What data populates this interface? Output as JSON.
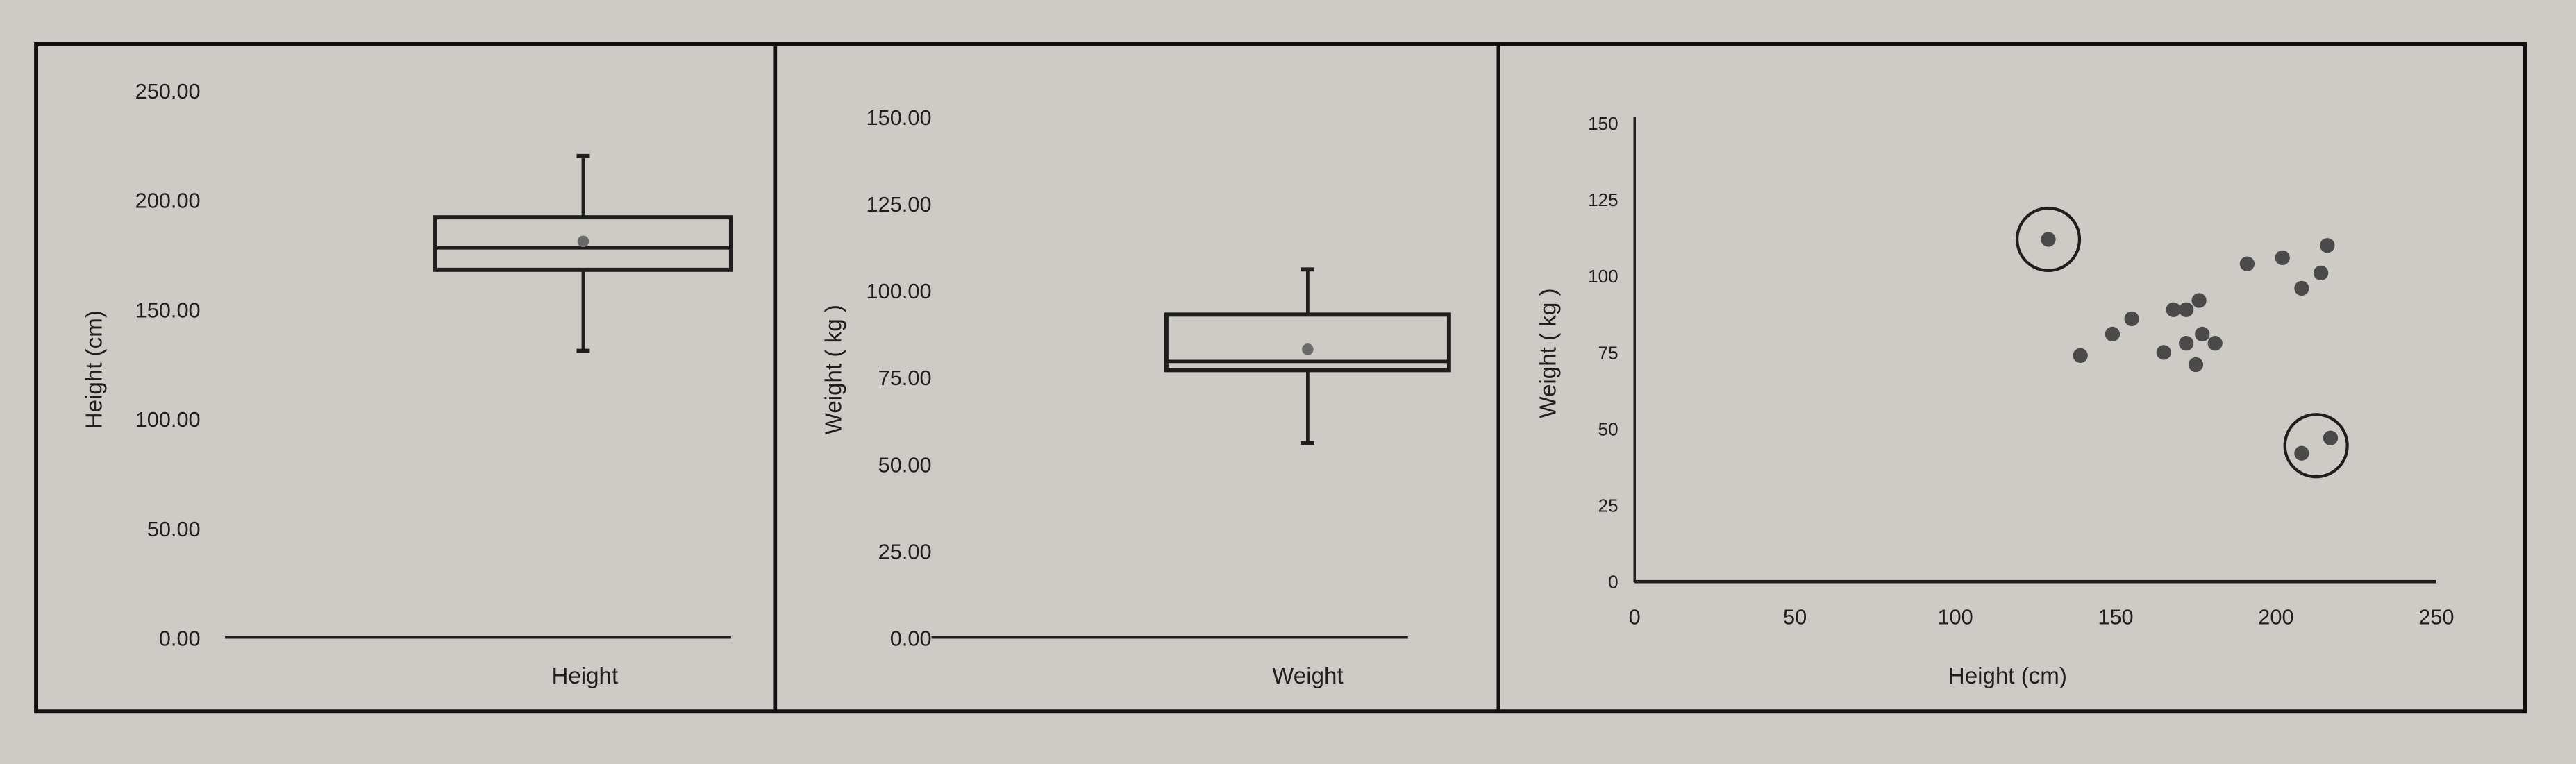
{
  "colors": {
    "background": "#cecbc6",
    "ink": "#1e1e1e",
    "mean_marker": "#6a6a6a",
    "point": "#4a4a4a"
  },
  "chart_data": [
    {
      "type": "box",
      "ylabel": "Height (cm)",
      "xlabel": "Height",
      "ylim": [
        0,
        250
      ],
      "yticks": [
        "0.00",
        "50.00",
        "100.00",
        "150.00",
        "200.00",
        "250.00"
      ],
      "tick_values": [
        0,
        50,
        100,
        150,
        200,
        250
      ],
      "box": {
        "whisker_low": 131,
        "q1": 168,
        "median": 178,
        "q3": 192,
        "whisker_high": 220,
        "mean": 181
      }
    },
    {
      "type": "box",
      "ylabel": "Weight ( kg )",
      "xlabel": "Weight",
      "ylim": [
        0,
        150
      ],
      "yticks": [
        "0.00",
        "25.00",
        "50.00",
        "75.00",
        "100.00",
        "125.00",
        "150.00"
      ],
      "tick_values": [
        0,
        25,
        50,
        75,
        100,
        125,
        150
      ],
      "box": {
        "whisker_low": 56,
        "q1": 77,
        "median": 79.5,
        "q3": 93,
        "whisker_high": 106,
        "mean": 83
      }
    },
    {
      "type": "scatter",
      "xlabel": "Height (cm)",
      "ylabel": "Weight ( kg )",
      "xlim": [
        0,
        250
      ],
      "ylim": [
        0,
        150
      ],
      "xticks": [
        "0",
        "50",
        "100",
        "150",
        "200",
        "250"
      ],
      "xtick_values": [
        0,
        50,
        100,
        150,
        200,
        250
      ],
      "yticks": [
        "0",
        "25",
        "50",
        "75",
        "100",
        "125",
        "150"
      ],
      "ytick_values": [
        0,
        25,
        50,
        75,
        100,
        125,
        150
      ],
      "points": [
        [
          129,
          112
        ],
        [
          139,
          74
        ],
        [
          149,
          81
        ],
        [
          155,
          86
        ],
        [
          165,
          75
        ],
        [
          168,
          89
        ],
        [
          172,
          89
        ],
        [
          176,
          92
        ],
        [
          172,
          78
        ],
        [
          177,
          81
        ],
        [
          181,
          78
        ],
        [
          175,
          71
        ],
        [
          191,
          104
        ],
        [
          202,
          106
        ],
        [
          208,
          96
        ],
        [
          214,
          101
        ],
        [
          216,
          110
        ],
        [
          208,
          42
        ],
        [
          217,
          47
        ]
      ],
      "outlier_circles": [
        {
          "center": [
            129,
            112
          ]
        },
        {
          "center": [
            212.5,
            44.5
          ]
        }
      ]
    }
  ]
}
